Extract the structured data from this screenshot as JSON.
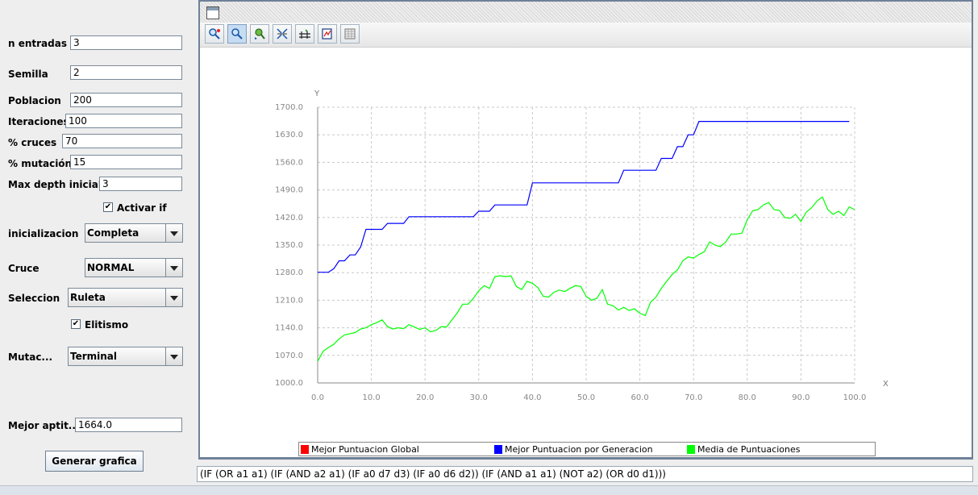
{
  "form": {
    "n_entradas": {
      "label": "n entradas",
      "value": "3"
    },
    "semilla": {
      "label": "Semilla",
      "value": "2"
    },
    "poblacion": {
      "label": "Poblacion",
      "value": "200"
    },
    "iteraciones": {
      "label": "Iteraciones",
      "value": "100"
    },
    "cruces": {
      "label": "% cruces",
      "value": "70"
    },
    "mutacion": {
      "label": "% mutación",
      "value": "15"
    },
    "max_depth": {
      "label": "Max depth inicial",
      "value": "3"
    },
    "activar_if": {
      "label": "Activar if",
      "checked": true
    },
    "inicializacion": {
      "label": "inicializacion",
      "value": "Completa"
    },
    "cruce": {
      "label": "Cruce",
      "value": "NORMAL"
    },
    "seleccion": {
      "label": "Seleccion",
      "value": "Ruleta"
    },
    "elitismo": {
      "label": "Elitismo",
      "checked": true
    },
    "mutac": {
      "label": "Mutac...",
      "value": "Terminal"
    },
    "mejor_aptitud": {
      "label": "Mejor aptit...",
      "value": "1664.0"
    },
    "generar_button": "Generar grafica",
    "checkmark": "✔"
  },
  "toolbar": {
    "icons": [
      "zoom-select-icon",
      "zoom-icon",
      "pan-icon",
      "resize-icon",
      "grid-icon",
      "export-icon",
      "table-icon"
    ]
  },
  "expression": "(IF (OR a1 a1) (IF (AND a2 a1) (IF a0 d7 d3) (IF a0 d6 d2)) (IF (AND a1 a1) (NOT a2) (OR d0 d1)))",
  "chart_data": {
    "type": "line",
    "xlabel": "X",
    "ylabel": "Y",
    "xlim": [
      0,
      100
    ],
    "ylim": [
      1000,
      1700
    ],
    "grid": true,
    "legend_position": "bottom",
    "x_ticks": [
      "0.0",
      "10.0",
      "20.0",
      "30.0",
      "40.0",
      "50.0",
      "60.0",
      "70.0",
      "80.0",
      "90.0",
      "100.0"
    ],
    "y_ticks": [
      "1000.0",
      "1070.0",
      "1140.0",
      "1210.0",
      "1280.0",
      "1350.0",
      "1420.0",
      "1490.0",
      "1560.0",
      "1630.0",
      "1700.0"
    ],
    "series": [
      {
        "name": "Mejor Puntuacion Global",
        "color": "#ff0000",
        "points": []
      },
      {
        "name": "Mejor Puntuacion por Generacion",
        "color": "#0000ff",
        "points": [
          [
            0,
            1281
          ],
          [
            2,
            1281
          ],
          [
            3,
            1290
          ],
          [
            4,
            1310
          ],
          [
            5,
            1310
          ],
          [
            6,
            1325
          ],
          [
            7,
            1325
          ],
          [
            8,
            1345
          ],
          [
            9,
            1390
          ],
          [
            12,
            1390
          ],
          [
            13,
            1405
          ],
          [
            16,
            1405
          ],
          [
            17,
            1422
          ],
          [
            29,
            1422
          ],
          [
            30,
            1436
          ],
          [
            32,
            1436
          ],
          [
            33,
            1452
          ],
          [
            39,
            1452
          ],
          [
            40,
            1508
          ],
          [
            56,
            1508
          ],
          [
            57,
            1540
          ],
          [
            63,
            1540
          ],
          [
            64,
            1570
          ],
          [
            66,
            1570
          ],
          [
            67,
            1600
          ],
          [
            68,
            1600
          ],
          [
            69,
            1630
          ],
          [
            70,
            1630
          ],
          [
            71,
            1664
          ],
          [
            99,
            1664
          ]
        ]
      },
      {
        "name": "Media de Puntuaciones",
        "color": "#00ff00",
        "points": [
          [
            0,
            1055
          ],
          [
            1,
            1080
          ],
          [
            2,
            1090
          ],
          [
            3,
            1098
          ],
          [
            4,
            1112
          ],
          [
            5,
            1122
          ],
          [
            6,
            1125
          ],
          [
            7,
            1128
          ],
          [
            8,
            1137
          ],
          [
            9,
            1140
          ],
          [
            10,
            1148
          ],
          [
            11,
            1153
          ],
          [
            12,
            1160
          ],
          [
            13,
            1143
          ],
          [
            14,
            1137
          ],
          [
            15,
            1140
          ],
          [
            16,
            1138
          ],
          [
            17,
            1148
          ],
          [
            18,
            1142
          ],
          [
            19,
            1136
          ],
          [
            20,
            1140
          ],
          [
            21,
            1130
          ],
          [
            22,
            1133
          ],
          [
            23,
            1143
          ],
          [
            24,
            1142
          ],
          [
            25,
            1160
          ],
          [
            26,
            1178
          ],
          [
            27,
            1200
          ],
          [
            28,
            1200
          ],
          [
            29,
            1215
          ],
          [
            30,
            1234
          ],
          [
            31,
            1247
          ],
          [
            32,
            1240
          ],
          [
            33,
            1270
          ],
          [
            34,
            1272
          ],
          [
            35,
            1270
          ],
          [
            36,
            1272
          ],
          [
            37,
            1245
          ],
          [
            38,
            1237
          ],
          [
            39,
            1258
          ],
          [
            40,
            1253
          ],
          [
            41,
            1242
          ],
          [
            42,
            1220
          ],
          [
            43,
            1218
          ],
          [
            44,
            1230
          ],
          [
            45,
            1236
          ],
          [
            46,
            1232
          ],
          [
            47,
            1240
          ],
          [
            48,
            1247
          ],
          [
            49,
            1245
          ],
          [
            50,
            1220
          ],
          [
            51,
            1210
          ],
          [
            52,
            1215
          ],
          [
            53,
            1237
          ],
          [
            54,
            1200
          ],
          [
            55,
            1196
          ],
          [
            56,
            1185
          ],
          [
            57,
            1192
          ],
          [
            58,
            1184
          ],
          [
            59,
            1188
          ],
          [
            60,
            1177
          ],
          [
            61,
            1171
          ],
          [
            62,
            1205
          ],
          [
            63,
            1218
          ],
          [
            64,
            1240
          ],
          [
            65,
            1258
          ],
          [
            66,
            1275
          ],
          [
            67,
            1287
          ],
          [
            68,
            1310
          ],
          [
            69,
            1320
          ],
          [
            70,
            1317
          ],
          [
            71,
            1326
          ],
          [
            72,
            1333
          ],
          [
            73,
            1358
          ],
          [
            74,
            1350
          ],
          [
            75,
            1346
          ],
          [
            76,
            1358
          ],
          [
            77,
            1378
          ],
          [
            78,
            1378
          ],
          [
            79,
            1380
          ],
          [
            80,
            1414
          ],
          [
            81,
            1437
          ],
          [
            82,
            1440
          ],
          [
            83,
            1452
          ],
          [
            84,
            1458
          ],
          [
            85,
            1440
          ],
          [
            86,
            1438
          ],
          [
            87,
            1420
          ],
          [
            88,
            1418
          ],
          [
            89,
            1428
          ],
          [
            90,
            1410
          ],
          [
            91,
            1434
          ],
          [
            92,
            1445
          ],
          [
            93,
            1462
          ],
          [
            94,
            1472
          ],
          [
            95,
            1440
          ],
          [
            96,
            1428
          ],
          [
            97,
            1436
          ],
          [
            98,
            1425
          ],
          [
            99,
            1447
          ],
          [
            100,
            1440
          ]
        ]
      }
    ]
  }
}
